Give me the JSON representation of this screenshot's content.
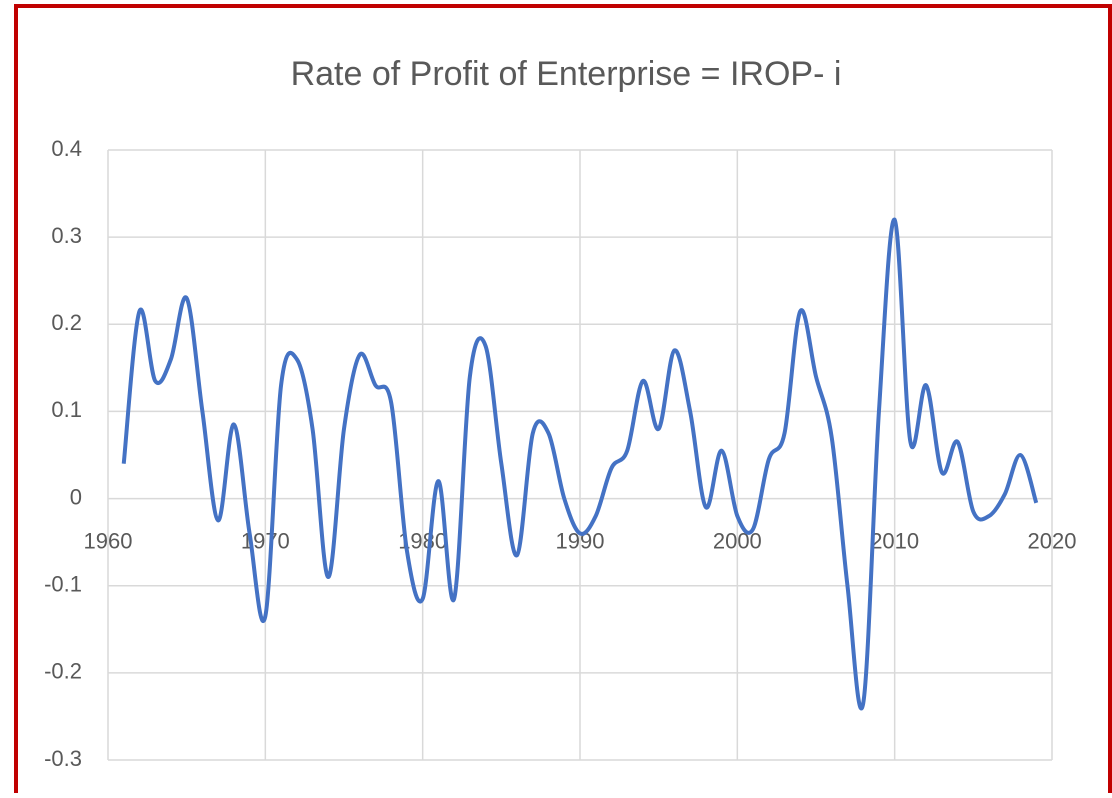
{
  "chart_data": {
    "type": "line",
    "title": "Rate of Profit of Enterprise = IROP- i",
    "x": [
      1961,
      1962,
      1963,
      1964,
      1965,
      1966,
      1967,
      1968,
      1969,
      1970,
      1971,
      1972,
      1973,
      1974,
      1975,
      1976,
      1977,
      1978,
      1979,
      1980,
      1981,
      1982,
      1983,
      1984,
      1985,
      1986,
      1987,
      1988,
      1989,
      1990,
      1991,
      1992,
      1993,
      1994,
      1995,
      1996,
      1997,
      1998,
      1999,
      2000,
      2001,
      2002,
      2003,
      2004,
      2005,
      2006,
      2007,
      2008,
      2009,
      2010,
      2011,
      2012,
      2013,
      2014,
      2015,
      2016,
      2017,
      2018,
      2019
    ],
    "series": [
      {
        "name": "Rate of Profit of Enterprise",
        "color": "#4472c4",
        "values": [
          0.04,
          0.215,
          0.135,
          0.16,
          0.23,
          0.1,
          -0.025,
          0.085,
          -0.04,
          -0.135,
          0.13,
          0.16,
          0.08,
          -0.09,
          0.08,
          0.165,
          0.13,
          0.11,
          -0.06,
          -0.115,
          0.02,
          -0.115,
          0.14,
          0.175,
          0.04,
          -0.065,
          0.075,
          0.075,
          0.0,
          -0.04,
          -0.02,
          0.035,
          0.055,
          0.135,
          0.08,
          0.17,
          0.1,
          -0.01,
          0.055,
          -0.02,
          -0.035,
          0.045,
          0.075,
          0.215,
          0.14,
          0.07,
          -0.1,
          -0.235,
          0.1,
          0.32,
          0.065,
          0.13,
          0.03,
          0.065,
          -0.015,
          -0.02,
          0.005,
          0.05,
          -0.005
        ]
      }
    ],
    "xlim": [
      1960,
      2020
    ],
    "xticks": [
      1960,
      1970,
      1980,
      1990,
      2000,
      2010,
      2020
    ],
    "ylim": [
      -0.3,
      0.4
    ],
    "yticks": [
      0.4,
      0.3,
      0.2,
      0.1,
      0,
      -0.1,
      -0.2,
      -0.3
    ],
    "grid": true
  }
}
